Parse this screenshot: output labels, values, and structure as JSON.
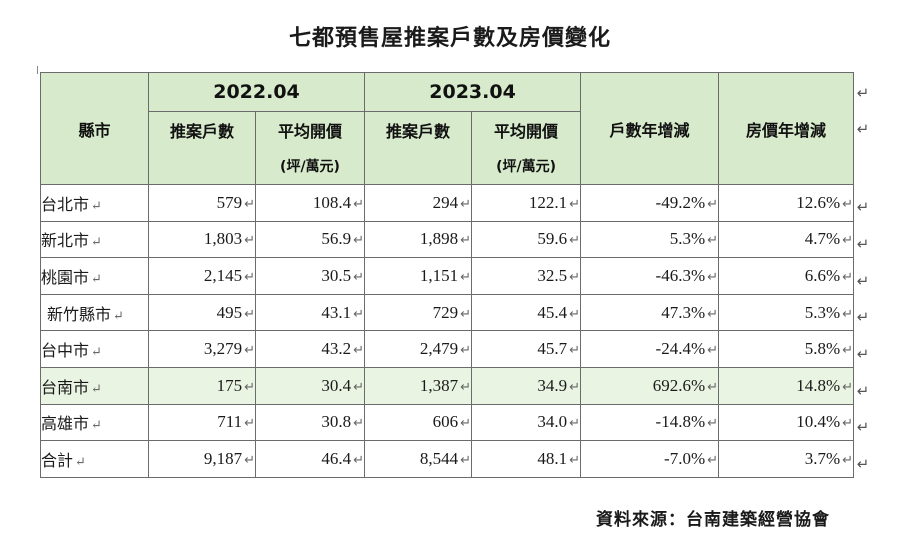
{
  "title": "七都預售屋推案戶數及房價變化",
  "header": {
    "city": "縣市",
    "year1": "2022.04",
    "year2": "2023.04",
    "units": "推案戶數",
    "avg_price": "平均開價",
    "price_unit": "(坪/萬元)",
    "units_change": "戶數年增減",
    "price_change": "房價年增減"
  },
  "rows": [
    {
      "city": "台北市",
      "units_2022": "579",
      "price_2022": "108.4",
      "units_2023": "294",
      "price_2023": "122.1",
      "units_chg": "-49.2%",
      "price_chg": "12.6%"
    },
    {
      "city": "新北市",
      "units_2022": "1,803",
      "price_2022": "56.9",
      "units_2023": "1,898",
      "price_2023": "59.6",
      "units_chg": "5.3%",
      "price_chg": "4.7%"
    },
    {
      "city": "桃園市",
      "units_2022": "2,145",
      "price_2022": "30.5",
      "units_2023": "1,151",
      "price_2023": "32.5",
      "units_chg": "-46.3%",
      "price_chg": "6.6%"
    },
    {
      "city": "新竹縣市",
      "units_2022": "495",
      "price_2022": "43.1",
      "units_2023": "729",
      "price_2023": "45.4",
      "units_chg": "47.3%",
      "price_chg": "5.3%"
    },
    {
      "city": "台中市",
      "units_2022": "3,279",
      "price_2022": "43.2",
      "units_2023": "2,479",
      "price_2023": "45.7",
      "units_chg": "-24.4%",
      "price_chg": "5.8%"
    },
    {
      "city": "台南市",
      "units_2022": "175",
      "price_2022": "30.4",
      "units_2023": "1,387",
      "price_2023": "34.9",
      "units_chg": "692.6%",
      "price_chg": "14.8%"
    },
    {
      "city": "高雄市",
      "units_2022": "711",
      "price_2022": "30.8",
      "units_2023": "606",
      "price_2023": "34.0",
      "units_chg": "-14.8%",
      "price_chg": "10.4%"
    },
    {
      "city": "合計",
      "units_2022": "9,187",
      "price_2022": "46.4",
      "units_2023": "8,544",
      "price_2023": "48.1",
      "units_chg": "-7.0%",
      "price_chg": "3.7%"
    }
  ],
  "highlight_color": "#eaf4e3",
  "header_color": "#d7eacb",
  "source": "資料來源：台南建築經營協會"
}
